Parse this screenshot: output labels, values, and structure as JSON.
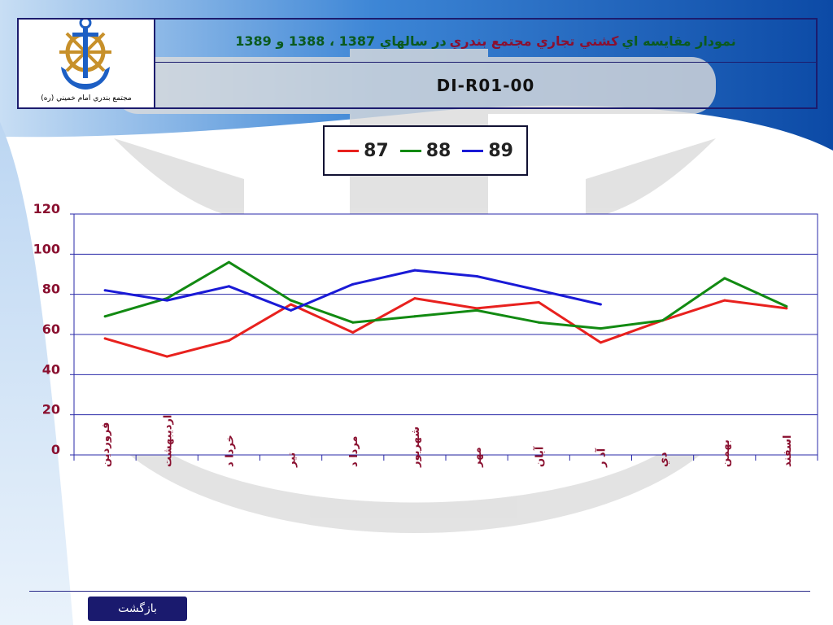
{
  "header": {
    "logo_caption": "مجتمع بندري امام خميني (ره)",
    "title_part1": "نمودار مقايسه اي",
    "title_part2": "كشتي تجاري مجتمع بندري",
    "title_part3": "در سالهاي 1387 ، 1388 و 1389",
    "doc_code": "DI-R01-00"
  },
  "legend": [
    {
      "label": "87",
      "color": "#e8211e"
    },
    {
      "label": "88",
      "color": "#128a12"
    },
    {
      "label": "89",
      "color": "#1a1ad6"
    }
  ],
  "chart_data": {
    "type": "line",
    "categories": [
      "فروردين",
      "ارديبهشت",
      "خرداد",
      "تير",
      "مرداد",
      "شهريور",
      "مهر",
      "آبان",
      "آذر",
      "دي",
      "بهمن",
      "اسفند"
    ],
    "category_display": [
      "فروردين",
      "ارديبهشت",
      "خردا د",
      "تير",
      "مردا د",
      "شهريور",
      "مهر",
      "آبان",
      "آذ ر",
      "دي",
      "بهمن",
      "اسفند"
    ],
    "ytick_labels": [
      "0",
      "20",
      "40",
      "60",
      "80",
      "100",
      "120"
    ],
    "ylim": [
      0,
      120
    ],
    "grid": true,
    "legend_position": "top-center",
    "series": [
      {
        "name": "87",
        "color": "#e8211e",
        "values": [
          58,
          49,
          57,
          75,
          61,
          78,
          73,
          76,
          56,
          67,
          77,
          73
        ]
      },
      {
        "name": "88",
        "color": "#128a12",
        "values": [
          69,
          78,
          96,
          77,
          66,
          69,
          72,
          66,
          63,
          67,
          88,
          74
        ]
      },
      {
        "name": "89",
        "color": "#1a1ad6",
        "values": [
          82,
          77,
          84,
          72,
          85,
          92,
          89,
          82,
          75,
          null,
          null,
          null
        ]
      }
    ]
  },
  "footer": {
    "back_label": "بازگشت"
  }
}
